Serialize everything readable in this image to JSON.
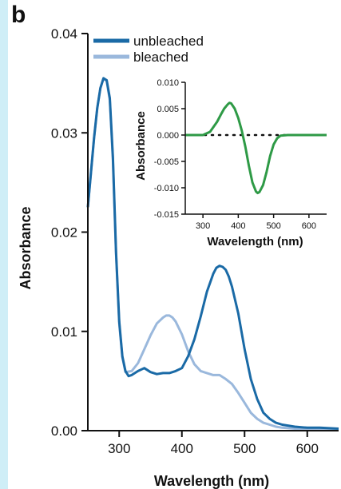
{
  "panel_label": "b",
  "colors": {
    "strip": "#cfeef7",
    "unbleached": "#1a6aa6",
    "bleached": "#9ab8dc",
    "difference": "#2e9a46"
  },
  "chart_data": [
    {
      "type": "line",
      "xlabel": "Wavelength (nm)",
      "ylabel": "Absorbance",
      "xlim": [
        250,
        650
      ],
      "ylim": [
        0.0,
        0.04
      ],
      "xticks": [
        300,
        400,
        500,
        600
      ],
      "xtick_labels": [
        "300",
        "400",
        "500",
        "600"
      ],
      "yticks": [
        0.0,
        0.01,
        0.02,
        0.03,
        0.04
      ],
      "ytick_labels": [
        "0.00",
        "0.01",
        "0.02",
        "0.03",
        "0.04"
      ],
      "legend_position": "top-left",
      "series": [
        {
          "name": "unbleached",
          "color": "#1a6aa6",
          "x": [
            250,
            255,
            260,
            265,
            270,
            275,
            280,
            285,
            290,
            295,
            300,
            305,
            310,
            315,
            320,
            330,
            340,
            350,
            360,
            370,
            380,
            390,
            400,
            410,
            420,
            430,
            440,
            450,
            455,
            460,
            465,
            470,
            475,
            480,
            490,
            500,
            510,
            520,
            530,
            540,
            550,
            560,
            580,
            600,
            620,
            650
          ],
          "y": [
            0.0225,
            0.026,
            0.0295,
            0.0325,
            0.0345,
            0.0355,
            0.0353,
            0.0335,
            0.0275,
            0.018,
            0.011,
            0.0075,
            0.006,
            0.0055,
            0.0056,
            0.006,
            0.0063,
            0.0059,
            0.0057,
            0.0058,
            0.0058,
            0.006,
            0.0063,
            0.0075,
            0.0092,
            0.0115,
            0.014,
            0.0158,
            0.0164,
            0.0166,
            0.0165,
            0.0162,
            0.0155,
            0.0145,
            0.0118,
            0.0082,
            0.0052,
            0.0032,
            0.0018,
            0.0012,
            0.0008,
            0.0006,
            0.0004,
            0.0003,
            0.0003,
            0.0002
          ]
        },
        {
          "name": "bleached",
          "color": "#9ab8dc",
          "x": [
            250,
            255,
            260,
            265,
            270,
            275,
            280,
            285,
            290,
            295,
            300,
            305,
            310,
            320,
            330,
            340,
            350,
            360,
            370,
            375,
            380,
            385,
            390,
            400,
            410,
            420,
            430,
            440,
            450,
            460,
            470,
            480,
            490,
            500,
            510,
            520,
            530,
            540,
            550,
            560,
            580,
            600,
            620,
            650
          ],
          "y": [
            0.0225,
            0.026,
            0.0295,
            0.0325,
            0.0345,
            0.0355,
            0.0352,
            0.0333,
            0.0272,
            0.0178,
            0.0108,
            0.0074,
            0.0059,
            0.006,
            0.0068,
            0.0082,
            0.0096,
            0.0108,
            0.0114,
            0.0116,
            0.0116,
            0.0114,
            0.011,
            0.0097,
            0.008,
            0.0067,
            0.006,
            0.0058,
            0.0056,
            0.0056,
            0.0052,
            0.0047,
            0.0038,
            0.0028,
            0.0018,
            0.0012,
            0.0008,
            0.0006,
            0.0004,
            0.0003,
            0.0002,
            0.0002,
            0.0002,
            0.0001
          ]
        }
      ]
    },
    {
      "type": "line",
      "xlabel": "Wavelength (nm)",
      "ylabel": "Absorbance",
      "xlim": [
        250,
        650
      ],
      "ylim": [
        -0.015,
        0.01
      ],
      "xticks": [
        300,
        400,
        500,
        600
      ],
      "xtick_labels": [
        "300",
        "400",
        "500",
        "600"
      ],
      "yticks": [
        -0.015,
        -0.01,
        -0.005,
        0.0,
        0.005,
        0.01
      ],
      "ytick_labels": [
        "-0.015",
        "-0.010",
        "-0.005",
        "0.000",
        "0.005",
        "0.010"
      ],
      "zero_line": "dotted",
      "series": [
        {
          "color": "#2e9a46",
          "x": [
            250,
            260,
            280,
            300,
            320,
            340,
            350,
            360,
            370,
            375,
            380,
            390,
            400,
            410,
            420,
            430,
            440,
            450,
            455,
            460,
            470,
            480,
            490,
            500,
            510,
            520,
            540,
            560,
            600,
            650
          ],
          "y": [
            0.0,
            0.0,
            0.0,
            0.0,
            0.0006,
            0.0025,
            0.0038,
            0.005,
            0.0058,
            0.0061,
            0.006,
            0.005,
            0.0032,
            0.0008,
            -0.0022,
            -0.0058,
            -0.009,
            -0.0107,
            -0.011,
            -0.0108,
            -0.0095,
            -0.007,
            -0.004,
            -0.0018,
            -0.0006,
            -0.0001,
            0.0,
            0.0,
            0.0,
            0.0
          ]
        }
      ]
    }
  ]
}
